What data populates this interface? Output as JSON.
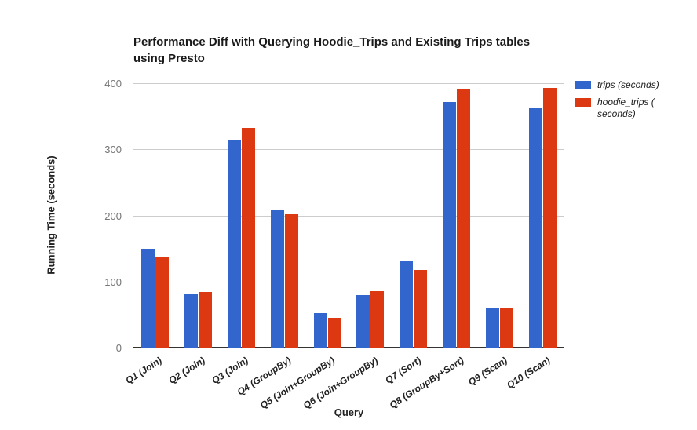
{
  "chart_data": {
    "type": "bar",
    "title": "Performance Diff with Querying Hoodie_Trips and Existing Trips tables using Presto",
    "title_lines": [
      "Performance Diff with Querying Hoodie_Trips and Existing Trips tables",
      "using Presto"
    ],
    "xlabel": "Query",
    "ylabel": "Running Time (seconds)",
    "ylim": [
      0,
      400
    ],
    "yticks": [
      0,
      100,
      200,
      300,
      400
    ],
    "grid": true,
    "legend_position": "right-top",
    "categories": [
      "Q1 (Join)",
      "Q2 (Join)",
      "Q3 (Join)",
      "Q4 (GroupBy)",
      "Q5 (Join+GroupBy)",
      "Q6 (Join+GroupBy)",
      "Q7 (Sort)",
      "Q8 (GroupBy+Sort)",
      "Q9 (Scan)",
      "Q10 (Scan)"
    ],
    "series": [
      {
        "key": "trips",
        "name": "trips (seconds)",
        "label_lines": [
          "trips (seconds)"
        ],
        "color": "#3366CC",
        "values": [
          150,
          81,
          313,
          208,
          52,
          80,
          131,
          371,
          61,
          363
        ]
      },
      {
        "key": "hoodie_trips",
        "name": "hoodie_trips (seconds)",
        "label_lines": [
          "hoodie_trips (",
          "seconds)"
        ],
        "color": "#DC3912",
        "values": [
          138,
          84,
          332,
          202,
          45,
          85,
          117,
          391,
          60,
          393
        ]
      }
    ],
    "colors": {
      "gridline": "#cccccc",
      "axis_line": "#333333",
      "tick_label": "#757575",
      "text": "#222222"
    }
  }
}
